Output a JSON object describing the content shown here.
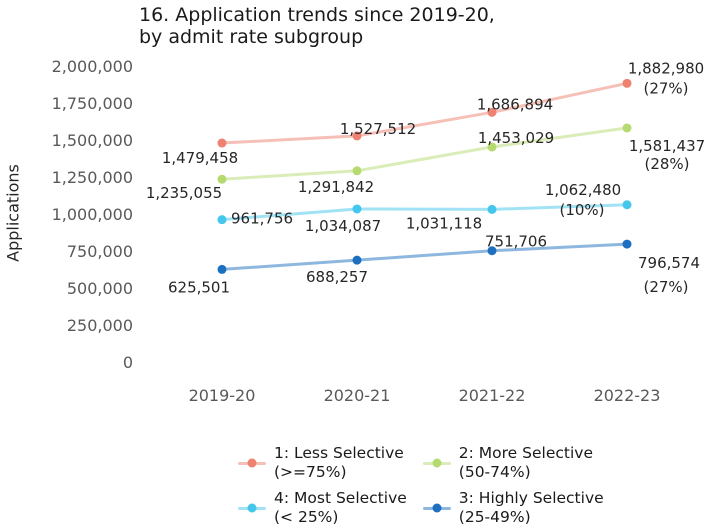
{
  "figure": {
    "title": "16. Application trends since 2019-20,\nby admit rate subgroup"
  },
  "chart_data": {
    "type": "line",
    "title": "16. Application trends since 2019-20, by admit rate subgroup",
    "ylabel": "Applications",
    "xlabel": "",
    "categories": [
      "2019-20",
      "2020-21",
      "2021-22",
      "2022-23"
    ],
    "ylim": [
      0,
      2000000
    ],
    "ytick_values": [
      0,
      250000,
      500000,
      750000,
      1000000,
      1250000,
      1500000,
      1750000,
      2000000
    ],
    "ytick_labels": [
      "0",
      "250,000",
      "500,000",
      "750,000",
      "1,000,000",
      "1,250,000",
      "1,500,000",
      "1,750,000",
      "2,000,000"
    ],
    "grid": false,
    "axis_lines": false,
    "legend_position": "bottom",
    "tick_color": "#595959",
    "label_color": "#262626",
    "series": [
      {
        "name": "1: Less Selective (>=75%)",
        "legend_line1": "1: Less Selective",
        "legend_line2": "(>=75%)",
        "color": "#ee8170",
        "values": [
          1479458,
          1527512,
          1686894,
          1882980
        ],
        "point_labels": [
          "1,479,458",
          "1,527,512",
          "1,686,894",
          "1,882,980"
        ],
        "final_annotation": "(27%)"
      },
      {
        "name": "2: More Selective (50-74%)",
        "legend_line1": "2: More Selective",
        "legend_line2": "(50-74%)",
        "color": "#b5da70",
        "values": [
          1235055,
          1291842,
          1453029,
          1581437
        ],
        "point_labels": [
          "1,235,055",
          "1,291,842",
          "1,453,029",
          "1,581,437"
        ],
        "final_annotation": "(28%)"
      },
      {
        "name": "4: Most Selective (< 25%)",
        "legend_line1": "4: Most Selective",
        "legend_line2": "(< 25%)",
        "color": "#45c6ec",
        "values": [
          961756,
          1034087,
          1031118,
          1062480
        ],
        "point_labels": [
          "961,756",
          "1,034,087",
          "1,031,118",
          "1,062,480"
        ],
        "final_annotation": "(10%)"
      },
      {
        "name": "3: Highly Selective (25-49%)",
        "legend_line1": "3: Highly Selective",
        "legend_line2": "(25-49%)",
        "color": "#1d6fc0",
        "values": [
          625501,
          688257,
          751706,
          796574
        ],
        "point_labels": [
          "625,501",
          "688,257",
          "751,706",
          "796,574"
        ],
        "final_annotation": "(27%)"
      }
    ]
  }
}
